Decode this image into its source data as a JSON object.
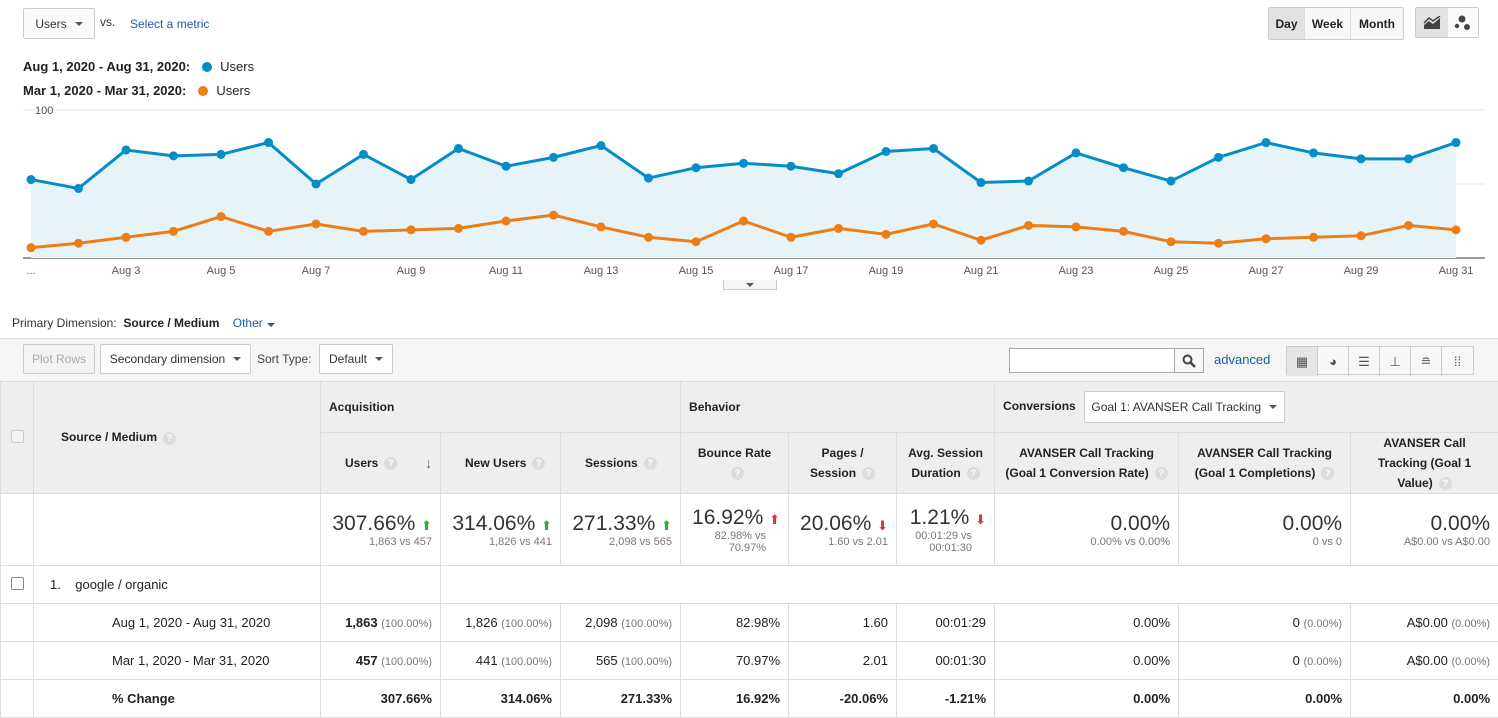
{
  "metric_selector": {
    "value": "Users",
    "vs": "vs.",
    "select_metric": "Select a metric"
  },
  "granularity": {
    "day": "Day",
    "week": "Week",
    "month": "Month",
    "active": "Day"
  },
  "chart_type_icons": [
    "line-chart-icon",
    "motion-chart-icon"
  ],
  "legend": [
    {
      "range": "Aug 1, 2020 - Aug 31, 2020:",
      "metric": "Users",
      "color": "#058dc7"
    },
    {
      "range": "Mar 1, 2020 - Mar 31, 2020:",
      "metric": "Users",
      "color": "#ed7e17"
    }
  ],
  "chart_data": {
    "type": "line",
    "ylim": [
      0,
      100
    ],
    "yticks": [
      "100",
      "50"
    ],
    "xtick_labels": [
      "...",
      "Aug 3",
      "Aug 5",
      "Aug 7",
      "Aug 9",
      "Aug 11",
      "Aug 13",
      "Aug 15",
      "Aug 17",
      "Aug 19",
      "Aug 21",
      "Aug 23",
      "Aug 25",
      "Aug 27",
      "Aug 29",
      "Aug 31"
    ],
    "x": [
      "Aug 1",
      "Aug 2",
      "Aug 3",
      "Aug 4",
      "Aug 5",
      "Aug 6",
      "Aug 7",
      "Aug 8",
      "Aug 9",
      "Aug 10",
      "Aug 11",
      "Aug 12",
      "Aug 13",
      "Aug 14",
      "Aug 15",
      "Aug 16",
      "Aug 17",
      "Aug 18",
      "Aug 19",
      "Aug 20",
      "Aug 21",
      "Aug 22",
      "Aug 23",
      "Aug 24",
      "Aug 25",
      "Aug 26",
      "Aug 27",
      "Aug 28",
      "Aug 29",
      "Aug 30",
      "Aug 31"
    ],
    "series": [
      {
        "name": "Users",
        "color": "#058dc7",
        "values": [
          53,
          47,
          73,
          69,
          70,
          78,
          50,
          70,
          53,
          74,
          62,
          68,
          76,
          54,
          61,
          64,
          62,
          57,
          72,
          74,
          51,
          52,
          71,
          61,
          52,
          68,
          78,
          71,
          67,
          67,
          78
        ]
      },
      {
        "name": "Users",
        "color": "#ed7e17",
        "values": [
          7,
          10,
          14,
          18,
          28,
          18,
          23,
          18,
          19,
          20,
          25,
          29,
          21,
          14,
          11,
          25,
          14,
          20,
          16,
          23,
          12,
          22,
          21,
          18,
          11,
          10,
          13,
          14,
          15,
          22,
          19
        ]
      }
    ]
  },
  "primary_dimension": {
    "label": "Primary Dimension:",
    "value": "Source / Medium",
    "other": "Other"
  },
  "toolbar": {
    "plot_rows": "Plot Rows",
    "secondary_dimension": "Secondary dimension",
    "sort_type_label": "Sort Type:",
    "sort_type_value": "Default",
    "search_placeholder": "",
    "advanced": "advanced",
    "view_icons": [
      "grid-view-icon",
      "pie-view-icon",
      "bar-view-icon",
      "comparison-view-icon",
      "term-cloud-icon",
      "pivot-view-icon"
    ]
  },
  "table": {
    "dimension_header": "Source / Medium",
    "groups": {
      "acquisition": "Acquisition",
      "behavior": "Behavior",
      "conversions": "Conversions",
      "goal_select": "Goal 1: AVANSER Call Tracking"
    },
    "columns": [
      "Users",
      "New Users",
      "Sessions",
      "Bounce Rate",
      "Pages / Session",
      "Avg. Session Duration",
      "AVANSER Call Tracking (Goal 1 Conversion Rate)",
      "AVANSER Call Tracking (Goal 1 Completions)",
      "AVANSER Call Tracking (Goal 1 Value)"
    ],
    "totals": [
      {
        "value": "307.66%",
        "dir": "up",
        "sub": "1,863 vs 457"
      },
      {
        "value": "314.06%",
        "dir": "up",
        "sub": "1,826 vs 441"
      },
      {
        "value": "271.33%",
        "dir": "up",
        "sub": "2,098 vs 565"
      },
      {
        "value": "16.92%",
        "dir": "bad-up",
        "sub": "82.98% vs 70.97%"
      },
      {
        "value": "20.06%",
        "dir": "down",
        "sub": "1.60 vs 2.01"
      },
      {
        "value": "1.21%",
        "dir": "down",
        "sub": "00:01:29 vs 00:01:30"
      },
      {
        "value": "0.00%",
        "dir": "",
        "sub": "0.00% vs 0.00%"
      },
      {
        "value": "0.00%",
        "dir": "",
        "sub": "0 vs 0"
      },
      {
        "value": "0.00%",
        "dir": "",
        "sub": "A$0.00 vs A$0.00"
      }
    ],
    "rows": [
      {
        "index": "1.",
        "name": "google / organic",
        "sub": [
          {
            "label": "Aug 1, 2020 - Aug 31, 2020",
            "cells": [
              [
                "1,863",
                "(100.00%)"
              ],
              [
                "1,826",
                "(100.00%)"
              ],
              [
                "2,098",
                "(100.00%)"
              ],
              [
                "82.98%",
                ""
              ],
              [
                "1.60",
                ""
              ],
              [
                "00:01:29",
                ""
              ],
              [
                "0.00%",
                ""
              ],
              [
                "0",
                "(0.00%)"
              ],
              [
                "A$0.00",
                "(0.00%)"
              ]
            ]
          },
          {
            "label": "Mar 1, 2020 - Mar 31, 2020",
            "cells": [
              [
                "457",
                "(100.00%)"
              ],
              [
                "441",
                "(100.00%)"
              ],
              [
                "565",
                "(100.00%)"
              ],
              [
                "70.97%",
                ""
              ],
              [
                "2.01",
                ""
              ],
              [
                "00:01:30",
                ""
              ],
              [
                "0.00%",
                ""
              ],
              [
                "0",
                "(0.00%)"
              ],
              [
                "A$0.00",
                "(0.00%)"
              ]
            ]
          },
          {
            "label": "% Change",
            "cells": [
              [
                "307.66%",
                ""
              ],
              [
                "314.06%",
                ""
              ],
              [
                "271.33%",
                ""
              ],
              [
                "16.92%",
                ""
              ],
              [
                "-20.06%",
                ""
              ],
              [
                "-1.21%",
                ""
              ],
              [
                "0.00%",
                ""
              ],
              [
                "0.00%",
                ""
              ],
              [
                "0.00%",
                ""
              ]
            ]
          }
        ]
      }
    ]
  }
}
